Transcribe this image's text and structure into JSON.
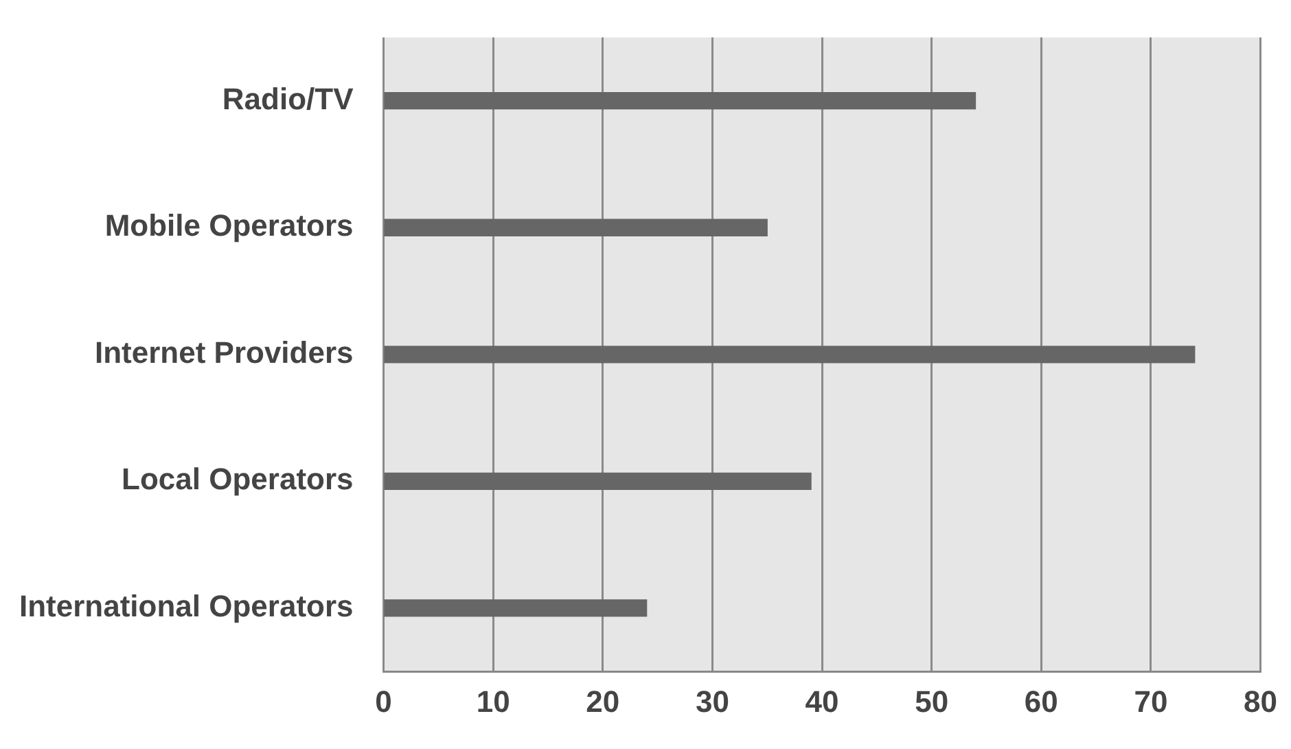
{
  "chart_data": {
    "type": "bar",
    "orientation": "horizontal",
    "categories": [
      "Radio/TV",
      "Mobile Operators",
      "Internet Providers",
      "Local Operators",
      "International Operators"
    ],
    "values": [
      54,
      35,
      74,
      39,
      24
    ],
    "color": "#666666",
    "xlim": [
      0,
      80
    ],
    "xticks": [
      0,
      10,
      20,
      30,
      40,
      50,
      60,
      70,
      80
    ],
    "grid": "x",
    "legend": false
  }
}
